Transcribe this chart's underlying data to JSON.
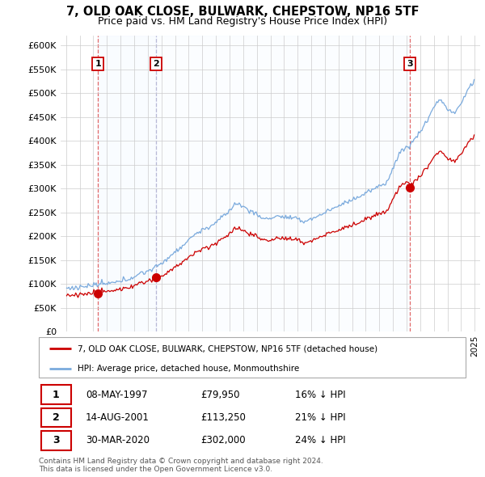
{
  "title": "7, OLD OAK CLOSE, BULWARK, CHEPSTOW, NP16 5TF",
  "subtitle": "Price paid vs. HM Land Registry's House Price Index (HPI)",
  "ylabel_ticks": [
    "£0",
    "£50K",
    "£100K",
    "£150K",
    "£200K",
    "£250K",
    "£300K",
    "£350K",
    "£400K",
    "£450K",
    "£500K",
    "£550K",
    "£600K"
  ],
  "ylim": [
    0,
    620000
  ],
  "ytick_vals": [
    0,
    50000,
    100000,
    150000,
    200000,
    250000,
    300000,
    350000,
    400000,
    450000,
    500000,
    550000,
    600000
  ],
  "sale_years": [
    1997.358,
    2001.621,
    2020.247
  ],
  "sale_prices": [
    79950,
    113250,
    302000
  ],
  "sale_labels": [
    "1",
    "2",
    "3"
  ],
  "sale_color": "#cc0000",
  "hpi_color": "#7aaadd",
  "shade_color": "#ddeeff",
  "dashed_sale_color": "#dd4444",
  "dashed_sale3_color": "#aaaacc",
  "legend_label_property": "7, OLD OAK CLOSE, BULWARK, CHEPSTOW, NP16 5TF (detached house)",
  "legend_label_hpi": "HPI: Average price, detached house, Monmouthshire",
  "table_data": [
    {
      "label": "1",
      "date": "08-MAY-1997",
      "price": "£79,950",
      "hpi": "16% ↓ HPI"
    },
    {
      "label": "2",
      "date": "14-AUG-2001",
      "price": "£113,250",
      "hpi": "21% ↓ HPI"
    },
    {
      "label": "3",
      "date": "30-MAR-2020",
      "price": "£302,000",
      "hpi": "24% ↓ HPI"
    }
  ],
  "footer": "Contains HM Land Registry data © Crown copyright and database right 2024.\nThis data is licensed under the Open Government Licence v3.0.",
  "background_color": "#ffffff",
  "grid_color": "#cccccc"
}
